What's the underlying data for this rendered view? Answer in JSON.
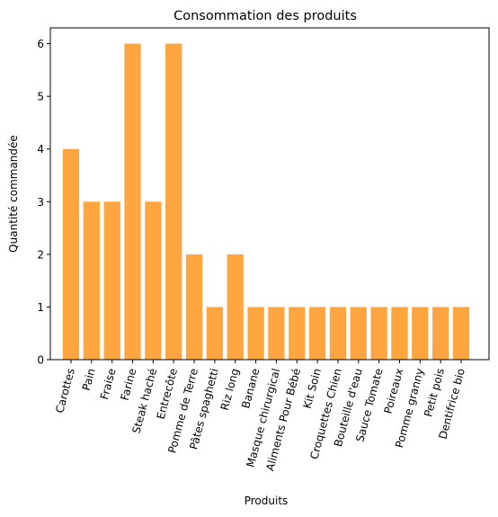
{
  "chart_data": {
    "type": "bar",
    "title": "Consommation des produits",
    "xlabel": "Produits",
    "ylabel": "Quantité commandée",
    "categories": [
      "Carottes",
      "Pain",
      "Fraise",
      "Farine",
      "Steak haché",
      "Entrecôte",
      "Pomme de Terre",
      "Pâtes spaghetti",
      "Riz long",
      "Banane",
      "Masque chirurgical",
      "Aliments Pour Bébé",
      "Kit Soin",
      "Croquettes Chien",
      "Bouteille d'eau",
      "Sauce Tomate",
      "Poireaux",
      "Pomme granny",
      "Petit pois",
      "Dentifrice bio"
    ],
    "values": [
      4,
      3,
      3,
      6,
      3,
      6,
      2,
      1,
      2,
      1,
      1,
      1,
      1,
      1,
      1,
      1,
      1,
      1,
      1,
      1
    ],
    "yticks": [
      0,
      1,
      2,
      3,
      4,
      5,
      6
    ],
    "ylim": [
      0,
      6.3
    ],
    "bar_color": "#ffa641",
    "grid": false,
    "legend": "none"
  }
}
